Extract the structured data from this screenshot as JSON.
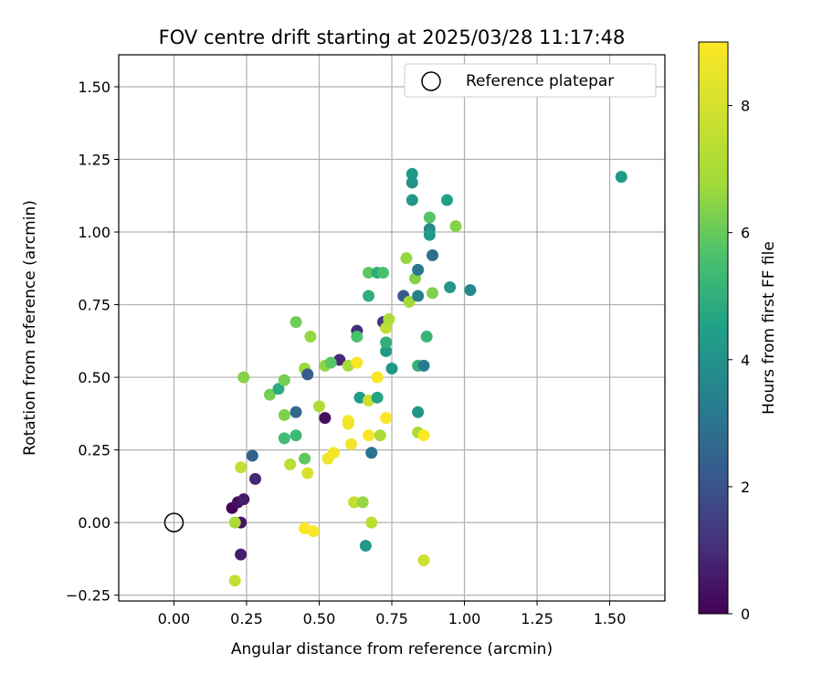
{
  "chart_data": {
    "type": "scatter",
    "title": "FOV centre drift starting at 2025/03/28 11:17:48",
    "xlabel": "Angular distance from reference (arcmin)",
    "ylabel": "Rotation from reference (arcmin)",
    "xlim": [
      -0.19,
      1.69
    ],
    "ylim": [
      -0.27,
      1.61
    ],
    "x_ticks": [
      "0.00",
      "0.25",
      "0.50",
      "0.75",
      "1.00",
      "1.25",
      "1.50"
    ],
    "y_ticks": [
      "-0.25",
      "0.00",
      "0.25",
      "0.50",
      "0.75",
      "1.00",
      "1.25",
      "1.50"
    ],
    "grid": true,
    "legend": {
      "placement": "top-right",
      "entries": [
        "Reference platepar"
      ]
    },
    "reference_point": {
      "x": 0.0,
      "y": 0.0,
      "marker": "open-circle"
    },
    "colorbar": {
      "label": "Hours from first FF file",
      "colormap": "viridis",
      "range": [
        0,
        9
      ],
      "ticks": [
        "0",
        "2",
        "4",
        "6",
        "8"
      ]
    },
    "points": [
      {
        "x": 0.2,
        "y": 0.05,
        "c": 0.1
      },
      {
        "x": 0.22,
        "y": 0.07,
        "c": 0.3
      },
      {
        "x": 0.24,
        "y": 0.08,
        "c": 0.6
      },
      {
        "x": 0.23,
        "y": 0.0,
        "c": 0.4
      },
      {
        "x": 0.23,
        "y": -0.11,
        "c": 0.7
      },
      {
        "x": 0.28,
        "y": 0.15,
        "c": 0.9
      },
      {
        "x": 0.52,
        "y": 0.36,
        "c": 0.3
      },
      {
        "x": 0.57,
        "y": 0.56,
        "c": 0.9
      },
      {
        "x": 0.63,
        "y": 0.66,
        "c": 1.0
      },
      {
        "x": 0.72,
        "y": 0.69,
        "c": 1.2
      },
      {
        "x": 0.21,
        "y": -0.2,
        "c": 7.6
      },
      {
        "x": 0.21,
        "y": 0.0,
        "c": 7.0
      },
      {
        "x": 0.23,
        "y": 0.19,
        "c": 7.6
      },
      {
        "x": 0.24,
        "y": 0.5,
        "c": 6.4
      },
      {
        "x": 0.27,
        "y": 0.23,
        "c": 2.4
      },
      {
        "x": 0.33,
        "y": 0.44,
        "c": 6.2
      },
      {
        "x": 0.36,
        "y": 0.46,
        "c": 4.8
      },
      {
        "x": 0.38,
        "y": 0.37,
        "c": 6.3
      },
      {
        "x": 0.38,
        "y": 0.29,
        "c": 5.4
      },
      {
        "x": 0.38,
        "y": 0.49,
        "c": 6.2
      },
      {
        "x": 0.4,
        "y": 0.2,
        "c": 7.4
      },
      {
        "x": 0.42,
        "y": 0.38,
        "c": 2.7
      },
      {
        "x": 0.42,
        "y": 0.3,
        "c": 5.3
      },
      {
        "x": 0.42,
        "y": 0.69,
        "c": 6.1
      },
      {
        "x": 0.45,
        "y": 0.22,
        "c": 5.9
      },
      {
        "x": 0.45,
        "y": 0.53,
        "c": 6.7
      },
      {
        "x": 0.45,
        "y": -0.02,
        "c": 8.9
      },
      {
        "x": 0.46,
        "y": 0.51,
        "c": 2.3
      },
      {
        "x": 0.46,
        "y": 0.17,
        "c": 8.1
      },
      {
        "x": 0.47,
        "y": 0.64,
        "c": 6.6
      },
      {
        "x": 0.48,
        "y": -0.03,
        "c": 8.9
      },
      {
        "x": 0.5,
        "y": 0.4,
        "c": 7.1
      },
      {
        "x": 0.52,
        "y": 0.54,
        "c": 6.5
      },
      {
        "x": 0.53,
        "y": 0.22,
        "c": 8.6
      },
      {
        "x": 0.54,
        "y": 0.55,
        "c": 5.8
      },
      {
        "x": 0.55,
        "y": 0.24,
        "c": 8.8
      },
      {
        "x": 0.6,
        "y": 0.54,
        "c": 6.9
      },
      {
        "x": 0.6,
        "y": 0.35,
        "c": 8.9
      },
      {
        "x": 0.6,
        "y": 0.34,
        "c": 8.7
      },
      {
        "x": 0.61,
        "y": 0.27,
        "c": 8.7
      },
      {
        "x": 0.62,
        "y": 0.07,
        "c": 7.6
      },
      {
        "x": 0.63,
        "y": 0.64,
        "c": 5.6
      },
      {
        "x": 0.63,
        "y": 0.55,
        "c": 8.9
      },
      {
        "x": 0.64,
        "y": 0.43,
        "c": 4.3
      },
      {
        "x": 0.65,
        "y": 0.07,
        "c": 6.6
      },
      {
        "x": 0.66,
        "y": -0.08,
        "c": 4.2
      },
      {
        "x": 0.67,
        "y": 0.42,
        "c": 7.8
      },
      {
        "x": 0.67,
        "y": 0.86,
        "c": 5.9
      },
      {
        "x": 0.67,
        "y": 0.78,
        "c": 5.0
      },
      {
        "x": 0.67,
        "y": 0.3,
        "c": 8.9
      },
      {
        "x": 0.68,
        "y": 0.24,
        "c": 3.0
      },
      {
        "x": 0.68,
        "y": 0.0,
        "c": 7.4
      },
      {
        "x": 0.7,
        "y": 0.43,
        "c": 4.6
      },
      {
        "x": 0.7,
        "y": 0.86,
        "c": 4.9
      },
      {
        "x": 0.7,
        "y": 0.5,
        "c": 8.9
      },
      {
        "x": 0.71,
        "y": 0.3,
        "c": 7.0
      },
      {
        "x": 0.72,
        "y": 0.86,
        "c": 5.6
      },
      {
        "x": 0.73,
        "y": 0.36,
        "c": 8.9
      },
      {
        "x": 0.73,
        "y": 0.59,
        "c": 4.3
      },
      {
        "x": 0.73,
        "y": 0.62,
        "c": 5.0
      },
      {
        "x": 0.73,
        "y": 0.67,
        "c": 7.4
      },
      {
        "x": 0.74,
        "y": 0.7,
        "c": 7.1
      },
      {
        "x": 0.75,
        "y": 0.53,
        "c": 4.2
      },
      {
        "x": 0.79,
        "y": 0.78,
        "c": 2.2
      },
      {
        "x": 0.8,
        "y": 0.91,
        "c": 6.6
      },
      {
        "x": 0.81,
        "y": 0.76,
        "c": 6.8
      },
      {
        "x": 0.82,
        "y": 1.2,
        "c": 4.3
      },
      {
        "x": 0.82,
        "y": 1.17,
        "c": 4.0
      },
      {
        "x": 0.82,
        "y": 1.11,
        "c": 4.2
      },
      {
        "x": 0.83,
        "y": 0.84,
        "c": 6.4
      },
      {
        "x": 0.84,
        "y": 0.87,
        "c": 3.1
      },
      {
        "x": 0.84,
        "y": 0.78,
        "c": 3.5
      },
      {
        "x": 0.84,
        "y": 0.54,
        "c": 5.1
      },
      {
        "x": 0.84,
        "y": 0.38,
        "c": 4.1
      },
      {
        "x": 0.84,
        "y": 0.31,
        "c": 7.0
      },
      {
        "x": 0.86,
        "y": 0.54,
        "c": 3.3
      },
      {
        "x": 0.86,
        "y": 0.3,
        "c": 9.0
      },
      {
        "x": 0.86,
        "y": -0.13,
        "c": 7.8
      },
      {
        "x": 0.87,
        "y": 0.64,
        "c": 5.2
      },
      {
        "x": 0.88,
        "y": 1.05,
        "c": 5.8
      },
      {
        "x": 0.88,
        "y": 1.01,
        "c": 3.7
      },
      {
        "x": 0.88,
        "y": 0.99,
        "c": 4.3
      },
      {
        "x": 0.89,
        "y": 0.92,
        "c": 2.9
      },
      {
        "x": 0.89,
        "y": 0.79,
        "c": 6.3
      },
      {
        "x": 0.94,
        "y": 1.11,
        "c": 4.5
      },
      {
        "x": 0.95,
        "y": 0.81,
        "c": 4.2
      },
      {
        "x": 0.97,
        "y": 1.02,
        "c": 6.4
      },
      {
        "x": 1.02,
        "y": 0.8,
        "c": 3.7
      },
      {
        "x": 1.54,
        "y": 1.19,
        "c": 4.3
      }
    ]
  }
}
